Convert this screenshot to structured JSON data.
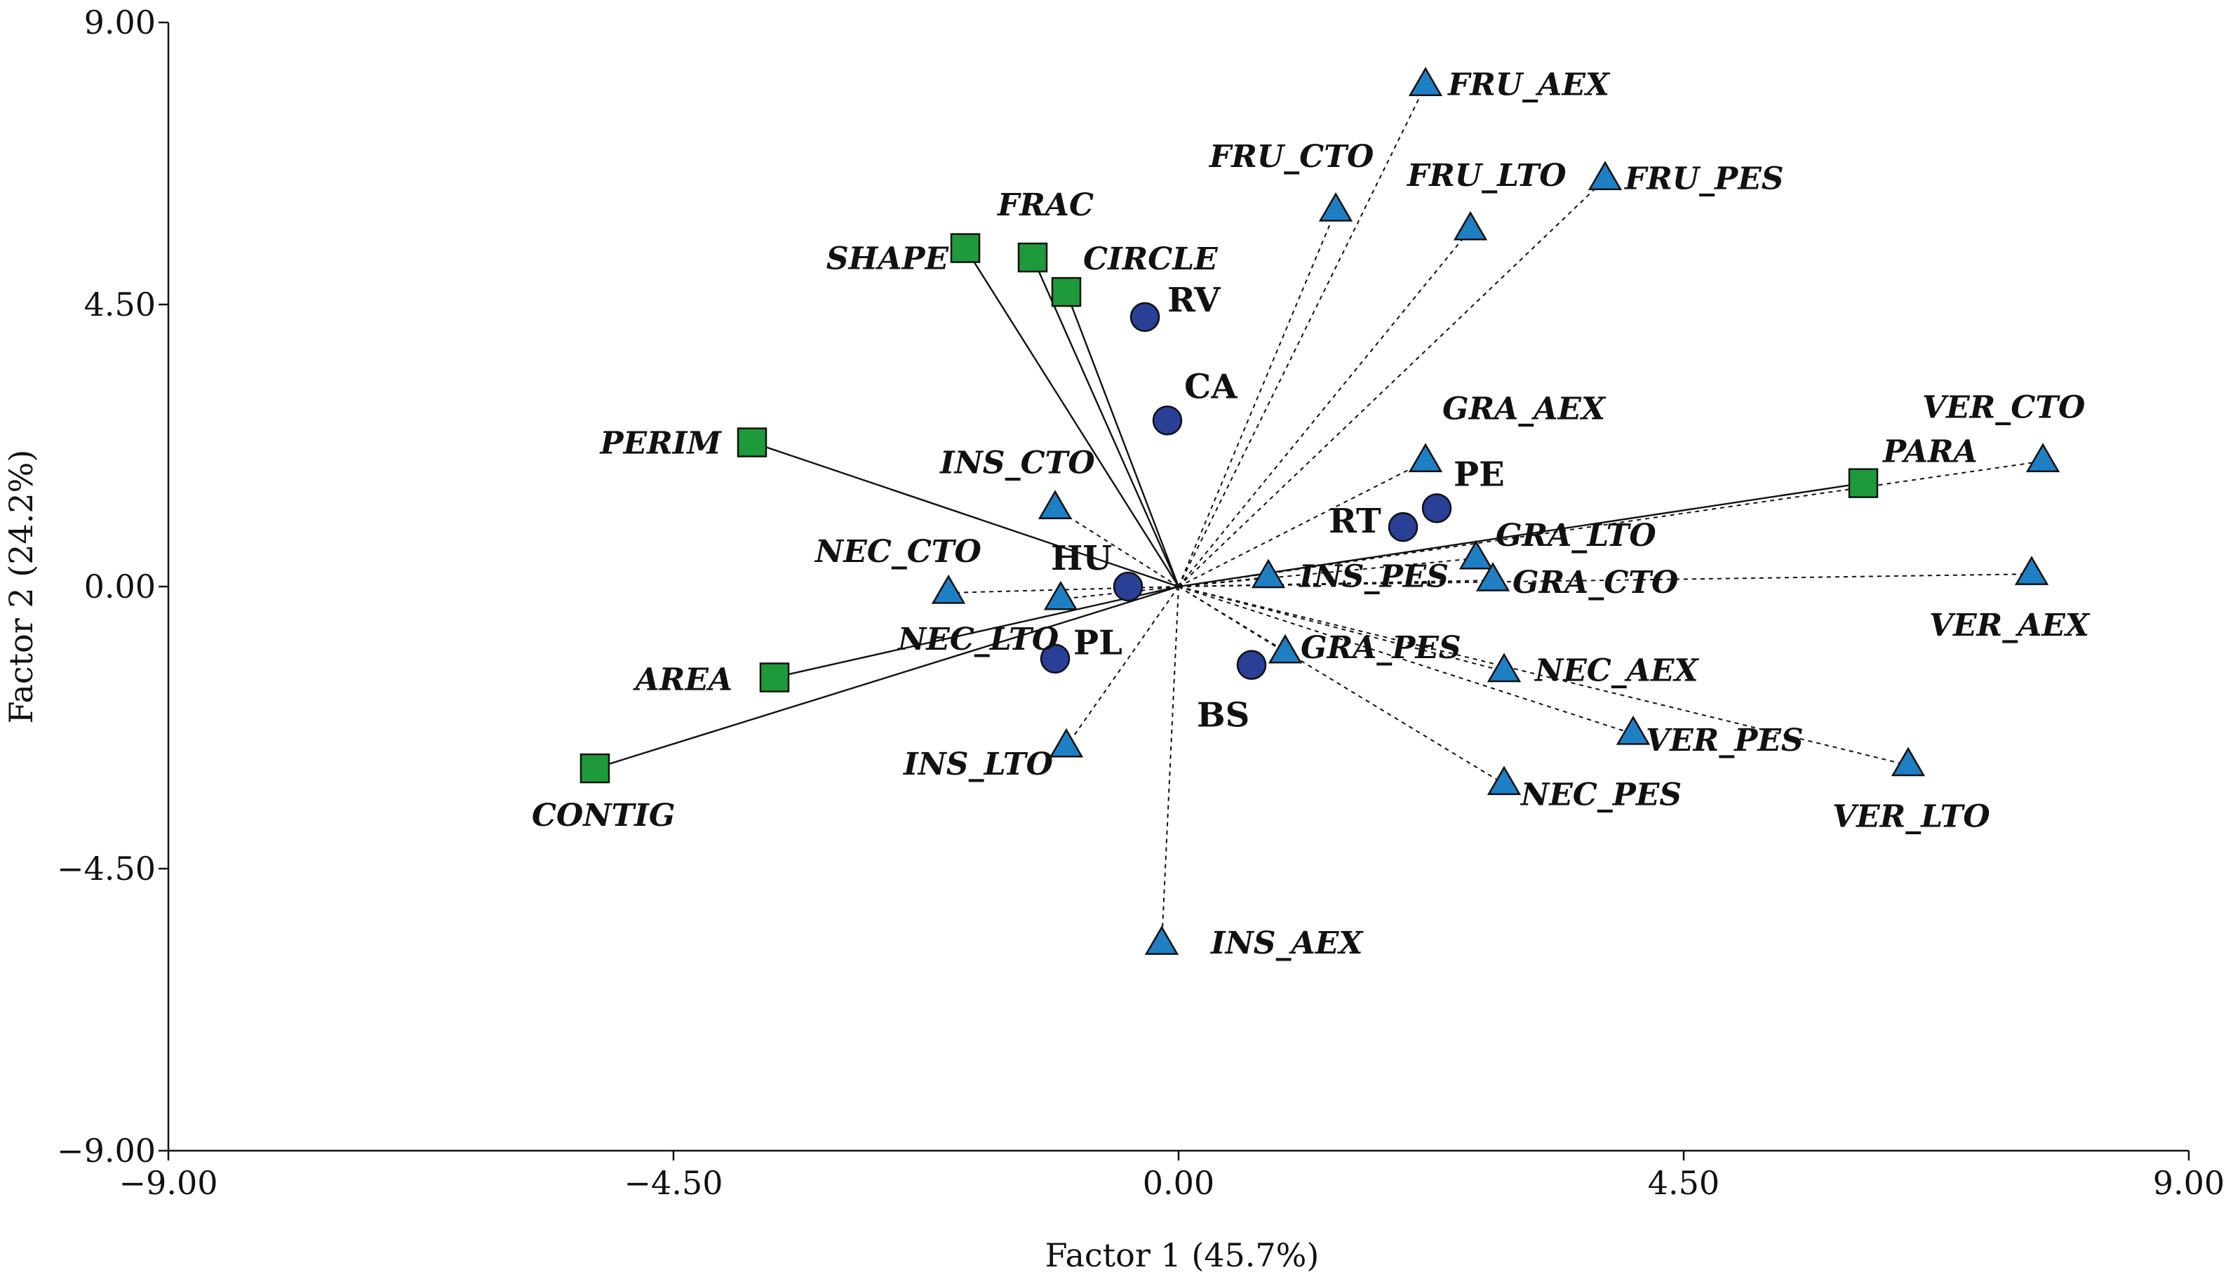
{
  "chart_data": {
    "type": "scatter",
    "title": "",
    "xlabel": "Factor 1 (45.7%)",
    "ylabel": "Factor 2 (24.2%)",
    "xlim": [
      -9.0,
      9.0
    ],
    "ylim": [
      -9.0,
      9.0
    ],
    "x_ticks": [
      "−9.00",
      "−4.50",
      "0.00",
      "4.50",
      "9.00"
    ],
    "y_ticks": [
      "9.00",
      "4.50",
      "0.00",
      "−4.50",
      "−9.00"
    ],
    "grid": false,
    "colors": {
      "landscape_metric": "#1e9a3a",
      "guild_variable": "#1f7fc4",
      "site": "#2a3f96",
      "line": "#111111"
    },
    "landscape_metrics": {
      "marker": "square",
      "line_style": "solid",
      "points": [
        {
          "label": "SHAPE",
          "x": -1.9,
          "y": 5.4
        },
        {
          "label": "FRAC",
          "x": -1.3,
          "y": 5.25
        },
        {
          "label": "CIRCLE",
          "x": -1.0,
          "y": 4.7
        },
        {
          "label": "PERIM",
          "x": -3.8,
          "y": 2.3
        },
        {
          "label": "PARA",
          "x": 6.1,
          "y": 1.65
        },
        {
          "label": "AREA",
          "x": -3.6,
          "y": -1.45
        },
        {
          "label": "CONTIG",
          "x": -5.2,
          "y": -2.9
        }
      ]
    },
    "guild_variables": {
      "marker": "triangle",
      "line_style": "dashed",
      "points": [
        {
          "label": "FRU_AEX",
          "x": 2.2,
          "y": 8.0
        },
        {
          "label": "FRU_CTO",
          "x": 1.4,
          "y": 6.0
        },
        {
          "label": "FRU_LTO",
          "x": 2.6,
          "y": 5.7
        },
        {
          "label": "FRU_PES",
          "x": 3.8,
          "y": 6.5
        },
        {
          "label": "GRA_AEX",
          "x": 2.2,
          "y": 2.0
        },
        {
          "label": "GRA_LTO",
          "x": 2.65,
          "y": 0.45
        },
        {
          "label": "GRA_CTO",
          "x": 2.8,
          "y": 0.1
        },
        {
          "label": "GRA_PES",
          "x": 0.95,
          "y": -1.05
        },
        {
          "label": "INS_CTO",
          "x": -1.1,
          "y": 1.25
        },
        {
          "label": "INS_PES",
          "x": 0.8,
          "y": 0.15
        },
        {
          "label": "INS_LTO",
          "x": -1.0,
          "y": -2.55
        },
        {
          "label": "INS_AEX",
          "x": -0.15,
          "y": -5.7
        },
        {
          "label": "NEC_CTO",
          "x": -2.05,
          "y": -0.1
        },
        {
          "label": "NEC_LTO",
          "x": -1.05,
          "y": -0.2
        },
        {
          "label": "NEC_AEX",
          "x": 2.9,
          "y": -1.35
        },
        {
          "label": "NEC_PES",
          "x": 2.9,
          "y": -3.15
        },
        {
          "label": "VER_CTO",
          "x": 7.7,
          "y": 2.0
        },
        {
          "label": "VER_AEX",
          "x": 7.6,
          "y": 0.2
        },
        {
          "label": "VER_PES",
          "x": 4.05,
          "y": -2.35
        },
        {
          "label": "VER_LTO",
          "x": 6.5,
          "y": -2.85
        }
      ]
    },
    "sites": {
      "marker": "circle",
      "points": [
        {
          "label": "RV",
          "x": -0.3,
          "y": 4.3
        },
        {
          "label": "CA",
          "x": -0.1,
          "y": 2.65
        },
        {
          "label": "PE",
          "x": 2.3,
          "y": 1.25
        },
        {
          "label": "RT",
          "x": 2.0,
          "y": 0.95
        },
        {
          "label": "HU",
          "x": -0.45,
          "y": 0.0
        },
        {
          "label": "PL",
          "x": -1.1,
          "y": -1.15
        },
        {
          "label": "BS",
          "x": 0.65,
          "y": -1.25
        }
      ]
    }
  }
}
